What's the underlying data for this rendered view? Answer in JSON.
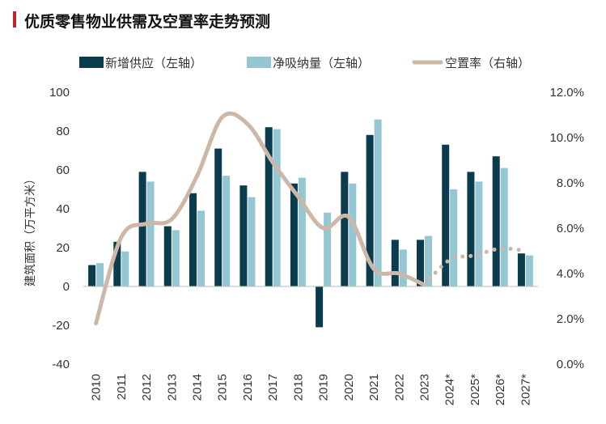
{
  "title": "优质零售物业供需及空置率走势预测",
  "colors": {
    "accent": "#c0272d",
    "new_supply": "#0b3c4d",
    "net_absorption": "#94c6d3",
    "vacancy": "#cdb8a8",
    "axis": "#bbbbbb"
  },
  "chart_data": {
    "type": "bar",
    "categories": [
      "2010",
      "2011",
      "2012",
      "2013",
      "2014",
      "2015",
      "2016",
      "2017",
      "2018",
      "2019",
      "2020",
      "2021",
      "2022",
      "2023",
      "2024*",
      "2025*",
      "2026*",
      "2027*"
    ],
    "ylabel": "建筑面积（万平方米）",
    "ylim": [
      -40,
      100
    ],
    "yticks": [
      "100",
      "80",
      "60",
      "40",
      "20",
      "0",
      "-20",
      "-40"
    ],
    "y2lim": [
      0,
      12
    ],
    "y2ticks": [
      "12.0%",
      "10.0%",
      "8.0%",
      "6.0%",
      "4.0%",
      "2.0%",
      "0.0%"
    ],
    "legend_position": "top",
    "series": [
      {
        "name": "新增供应（左轴）",
        "axis": "left",
        "kind": "bar",
        "values": [
          11,
          23,
          59,
          31,
          48,
          71,
          52,
          82,
          53,
          -21,
          59,
          78,
          24,
          24,
          73,
          59,
          67,
          17
        ]
      },
      {
        "name": "净吸纳量（左轴）",
        "axis": "left",
        "kind": "bar",
        "values": [
          12,
          18,
          54,
          29,
          39,
          57,
          46,
          81,
          56,
          38,
          53,
          86,
          19,
          26,
          50,
          54,
          61,
          16
        ]
      },
      {
        "name": "空置率（右轴）",
        "axis": "right",
        "kind": "line",
        "forecast_from": "2023",
        "values": [
          1.8,
          5.6,
          6.2,
          6.4,
          8.3,
          10.9,
          10.6,
          8.9,
          7.4,
          6.0,
          6.5,
          4.2,
          4.0,
          3.5,
          4.6,
          4.8,
          5.1,
          5.0
        ]
      }
    ]
  }
}
